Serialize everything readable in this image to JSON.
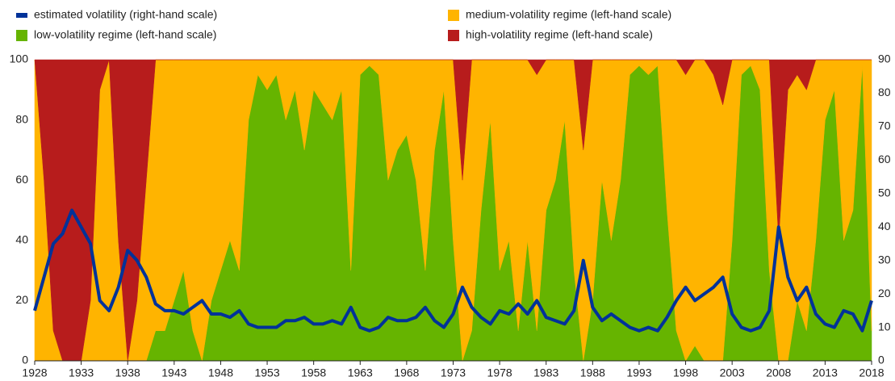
{
  "chart_data": {
    "type": "area",
    "stacked": true,
    "x": [
      1928,
      1929,
      1930,
      1931,
      1932,
      1933,
      1934,
      1935,
      1936,
      1937,
      1938,
      1939,
      1940,
      1941,
      1942,
      1943,
      1944,
      1945,
      1946,
      1947,
      1948,
      1949,
      1950,
      1951,
      1952,
      1953,
      1954,
      1955,
      1956,
      1957,
      1958,
      1959,
      1960,
      1961,
      1962,
      1963,
      1964,
      1965,
      1966,
      1967,
      1968,
      1969,
      1970,
      1971,
      1972,
      1973,
      1974,
      1975,
      1976,
      1977,
      1978,
      1979,
      1980,
      1981,
      1982,
      1983,
      1984,
      1985,
      1986,
      1987,
      1988,
      1989,
      1990,
      1991,
      1992,
      1993,
      1994,
      1995,
      1996,
      1997,
      1998,
      1999,
      2000,
      2001,
      2002,
      2003,
      2004,
      2005,
      2006,
      2007,
      2008,
      2009,
      2010,
      2011,
      2012,
      2013,
      2014,
      2015,
      2016,
      2017,
      2018
    ],
    "series": [
      {
        "name": "low-volatility regime (left-hand scale)",
        "color": "#66b400",
        "values": [
          0,
          0,
          0,
          0,
          0,
          0,
          0,
          0,
          0,
          0,
          0,
          0,
          0,
          10,
          10,
          20,
          30,
          10,
          0,
          20,
          30,
          40,
          30,
          80,
          95,
          90,
          95,
          80,
          90,
          70,
          90,
          85,
          80,
          90,
          30,
          95,
          98,
          95,
          60,
          70,
          75,
          60,
          30,
          70,
          90,
          40,
          0,
          10,
          50,
          80,
          30,
          40,
          10,
          40,
          10,
          50,
          60,
          80,
          30,
          0,
          20,
          60,
          40,
          60,
          95,
          98,
          95,
          98,
          50,
          10,
          0,
          5,
          0,
          0,
          0,
          40,
          95,
          98,
          90,
          30,
          0,
          0,
          20,
          10,
          40,
          80,
          90,
          40,
          50,
          98,
          10
        ]
      },
      {
        "name": "medium-volatility regime (left-hand scale)",
        "color": "#ffb400",
        "values": [
          100,
          60,
          10,
          0,
          0,
          0,
          20,
          90,
          100,
          40,
          0,
          20,
          60,
          90,
          90,
          80,
          70,
          90,
          100,
          80,
          70,
          60,
          70,
          20,
          5,
          10,
          5,
          20,
          10,
          30,
          10,
          15,
          20,
          10,
          70,
          5,
          2,
          5,
          40,
          30,
          25,
          40,
          70,
          30,
          10,
          60,
          60,
          90,
          50,
          20,
          70,
          60,
          90,
          60,
          85,
          50,
          40,
          20,
          70,
          70,
          80,
          40,
          60,
          40,
          5,
          2,
          5,
          2,
          50,
          90,
          95,
          95,
          100,
          95,
          85,
          60,
          5,
          2,
          10,
          70,
          40,
          90,
          75,
          80,
          60,
          20,
          10,
          60,
          50,
          2,
          90
        ]
      },
      {
        "name": "high-volatility regime (left-hand scale)",
        "color": "#b71c1c",
        "values": [
          0,
          40,
          90,
          100,
          100,
          100,
          80,
          10,
          0,
          60,
          100,
          80,
          40,
          0,
          0,
          0,
          0,
          0,
          0,
          0,
          0,
          0,
          0,
          0,
          0,
          0,
          0,
          0,
          0,
          0,
          0,
          0,
          0,
          0,
          0,
          0,
          0,
          0,
          0,
          0,
          0,
          0,
          0,
          0,
          0,
          0,
          40,
          0,
          0,
          0,
          0,
          0,
          0,
          0,
          5,
          0,
          0,
          0,
          0,
          30,
          0,
          0,
          0,
          0,
          0,
          0,
          0,
          0,
          0,
          0,
          5,
          0,
          0,
          5,
          15,
          0,
          0,
          0,
          0,
          0,
          60,
          10,
          5,
          10,
          0,
          0,
          0,
          0,
          0,
          0,
          0
        ]
      },
      {
        "name": "estimated volatility (right-hand scale)",
        "color": "#003299",
        "axis": "y2",
        "values": [
          15,
          25,
          35,
          38,
          45,
          40,
          35,
          18,
          15,
          22,
          33,
          30,
          25,
          17,
          15,
          15,
          14,
          16,
          18,
          14,
          14,
          13,
          15,
          11,
          10,
          10,
          10,
          12,
          12,
          13,
          11,
          11,
          12,
          11,
          16,
          10,
          9,
          10,
          13,
          12,
          12,
          13,
          16,
          12,
          10,
          14,
          22,
          16,
          13,
          11,
          15,
          14,
          17,
          14,
          18,
          13,
          12,
          11,
          15,
          30,
          16,
          12,
          14,
          12,
          10,
          9,
          10,
          9,
          13,
          18,
          22,
          18,
          20,
          22,
          25,
          14,
          10,
          9,
          10,
          15,
          40,
          25,
          18,
          22,
          14,
          11,
          10,
          15,
          14,
          9,
          18
        ]
      }
    ],
    "xlim": [
      1928,
      2018
    ],
    "xticks": [
      1928,
      1933,
      1938,
      1943,
      1948,
      1953,
      1958,
      1963,
      1968,
      1973,
      1978,
      1983,
      1988,
      1993,
      1998,
      2003,
      2008,
      2013,
      2018
    ],
    "ylim": [
      0,
      100
    ],
    "yticks": [
      0,
      20,
      40,
      60,
      80,
      100
    ],
    "y2lim": [
      0,
      90
    ],
    "y2ticks": [
      0,
      10,
      20,
      30,
      40,
      50,
      60,
      70,
      80,
      90
    ]
  }
}
